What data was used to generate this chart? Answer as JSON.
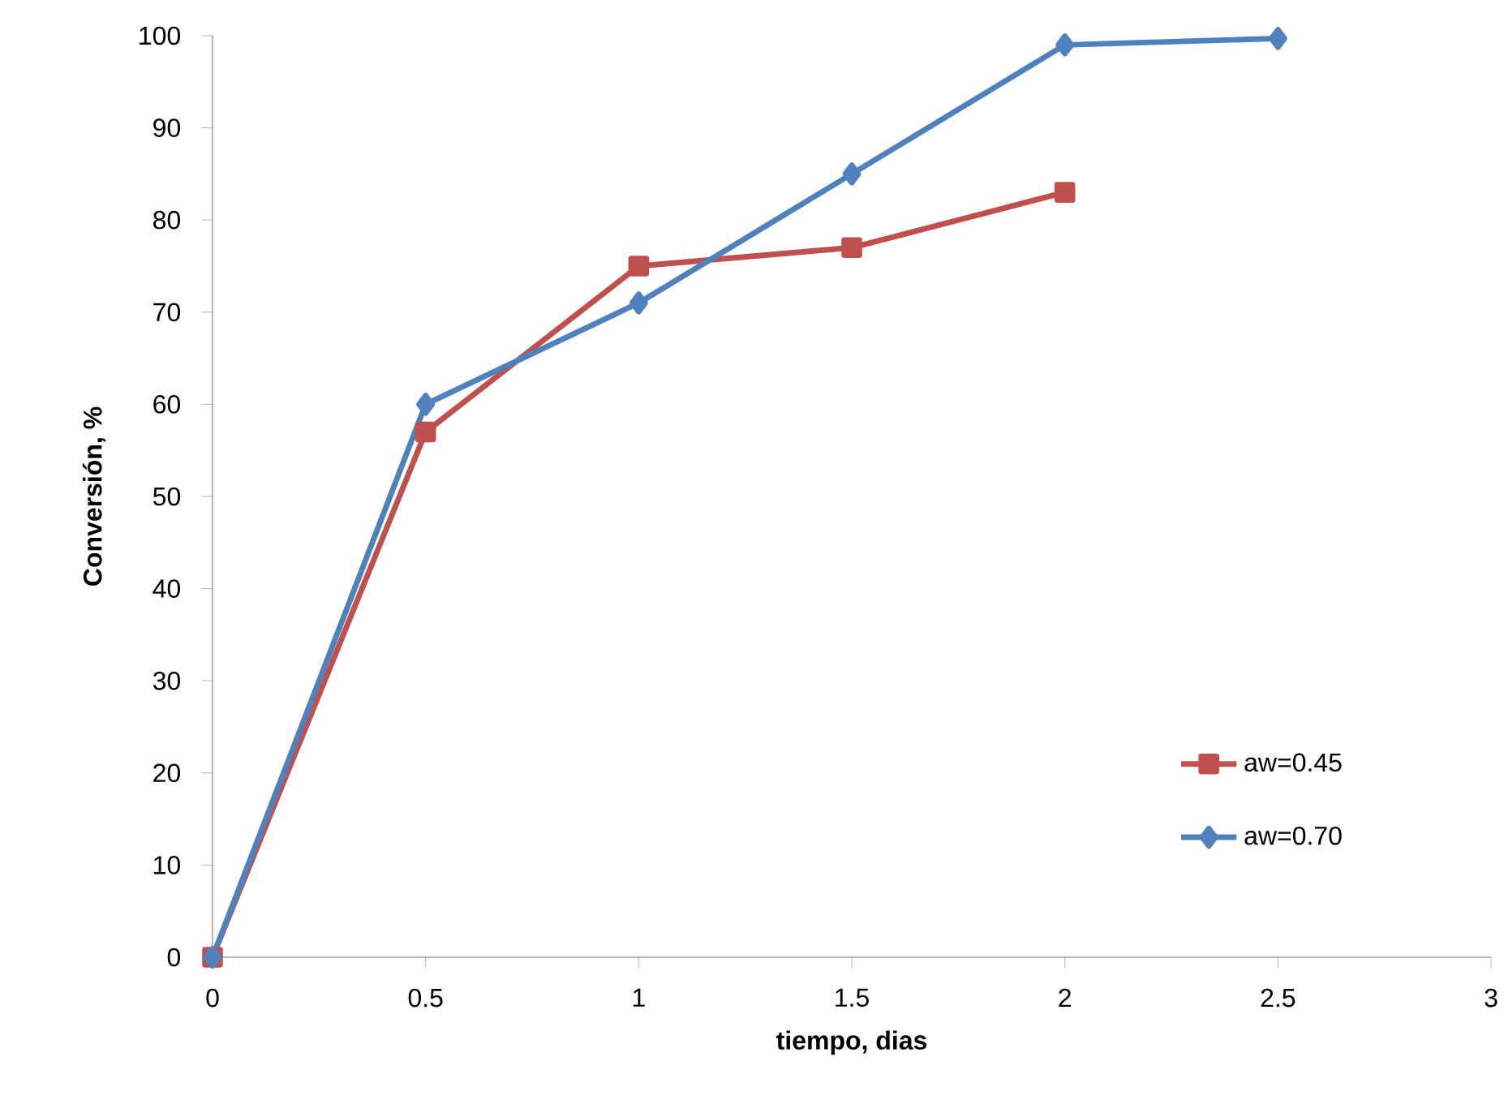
{
  "chart_data": {
    "type": "line",
    "xlabel": "tiempo, dias",
    "ylabel": "Conversión, %",
    "xlim": [
      0,
      3
    ],
    "xticks": [
      0,
      0.5,
      1,
      1.5,
      2,
      2.5,
      3
    ],
    "ylim": [
      0,
      100
    ],
    "yticks": [
      0,
      10,
      20,
      30,
      40,
      50,
      60,
      70,
      80,
      90,
      100
    ],
    "grid": false,
    "legend": "right",
    "line_style": "solid",
    "series": [
      {
        "name": "aw=0.45",
        "color": "#c0504d",
        "marker": "square",
        "x": [
          0,
          0.5,
          1,
          1.5,
          2
        ],
        "values": [
          0,
          57,
          75,
          77,
          83
        ]
      },
      {
        "name": "aw=0.70",
        "color": "#4f81bd",
        "marker": "diamond",
        "x": [
          0,
          0.5,
          1,
          1.5,
          2,
          2.5
        ],
        "values": [
          0,
          60,
          71,
          85,
          99,
          99.7
        ]
      }
    ]
  }
}
